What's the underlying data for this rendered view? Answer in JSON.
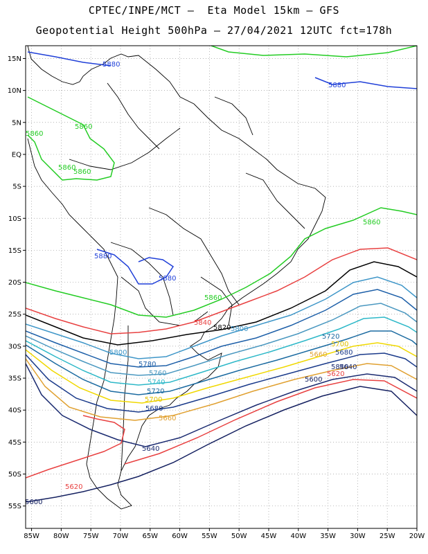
{
  "header": {
    "line1": "CPTEC/INPE/MCT –  Eta Model 15km – GFS",
    "line2": "Geopotential Height 500hPa – 27/04/2021 12UTC fct=178h"
  },
  "axes": {
    "lat_labels": [
      "15N",
      "10N",
      "5N",
      "EQ",
      "5S",
      "10S",
      "15S",
      "20S",
      "25S",
      "30S",
      "35S",
      "40S",
      "45S",
      "50S",
      "55S"
    ],
    "lat_values": [
      15,
      10,
      5,
      0,
      -5,
      -10,
      -15,
      -20,
      -25,
      -30,
      -35,
      -40,
      -45,
      -50,
      -55
    ],
    "lon_labels": [
      "85W",
      "80W",
      "75W",
      "70W",
      "65W",
      "60W",
      "55W",
      "50W",
      "45W",
      "40W",
      "35W",
      "30W",
      "25W",
      "20W"
    ],
    "lon_values": [
      -85,
      -80,
      -75,
      -70,
      -65,
      -60,
      -55,
      -50,
      -45,
      -40,
      -35,
      -30,
      -25,
      -20
    ],
    "lon_range": [
      -86,
      -20
    ],
    "lat_range": [
      -58.5,
      17
    ]
  },
  "contours": [
    {
      "value": "5880",
      "color": "#1f3fd8",
      "labels": [
        "5880",
        "5880",
        "5880",
        "5880"
      ]
    },
    {
      "value": "5860",
      "color": "#22cc22",
      "labels": [
        "5860",
        "5860",
        "5860",
        "5860",
        "5860",
        "5860"
      ]
    },
    {
      "value": "5840",
      "color": "#e84040",
      "labels": [
        "5840",
        "5840"
      ]
    },
    {
      "value": "5820",
      "color": "#000000",
      "labels": [
        "5820"
      ]
    },
    {
      "value": "5800",
      "color": "#3e96c8",
      "labels": [
        "5800",
        "5800"
      ]
    },
    {
      "value": "5780",
      "color": "#1d5fa8",
      "labels": [
        "5780"
      ]
    },
    {
      "value": "5760",
      "color": "#4a98c0",
      "labels": [
        "5760"
      ]
    },
    {
      "value": "5740",
      "color": "#2db8c8",
      "labels": [
        "5740"
      ]
    },
    {
      "value": "5720",
      "color": "#1a6aa0",
      "labels": [
        "5720",
        "5720"
      ]
    },
    {
      "value": "5700",
      "color": "#f0d800",
      "labels": [
        "5700",
        "5700"
      ]
    },
    {
      "value": "5680",
      "color": "#1a3a8a",
      "labels": [
        "5680",
        "5680"
      ]
    },
    {
      "value": "5660",
      "color": "#e0a030",
      "labels": [
        "5660",
        "5660"
      ]
    },
    {
      "value": "5640",
      "color": "#1a2a70",
      "labels": [
        "5640",
        "5640"
      ]
    },
    {
      "value": "5620",
      "color": "#e84040",
      "labels": [
        "5620",
        "5620"
      ]
    },
    {
      "value": "5600",
      "color": "#142060",
      "labels": [
        "5600",
        "5600"
      ]
    }
  ]
}
